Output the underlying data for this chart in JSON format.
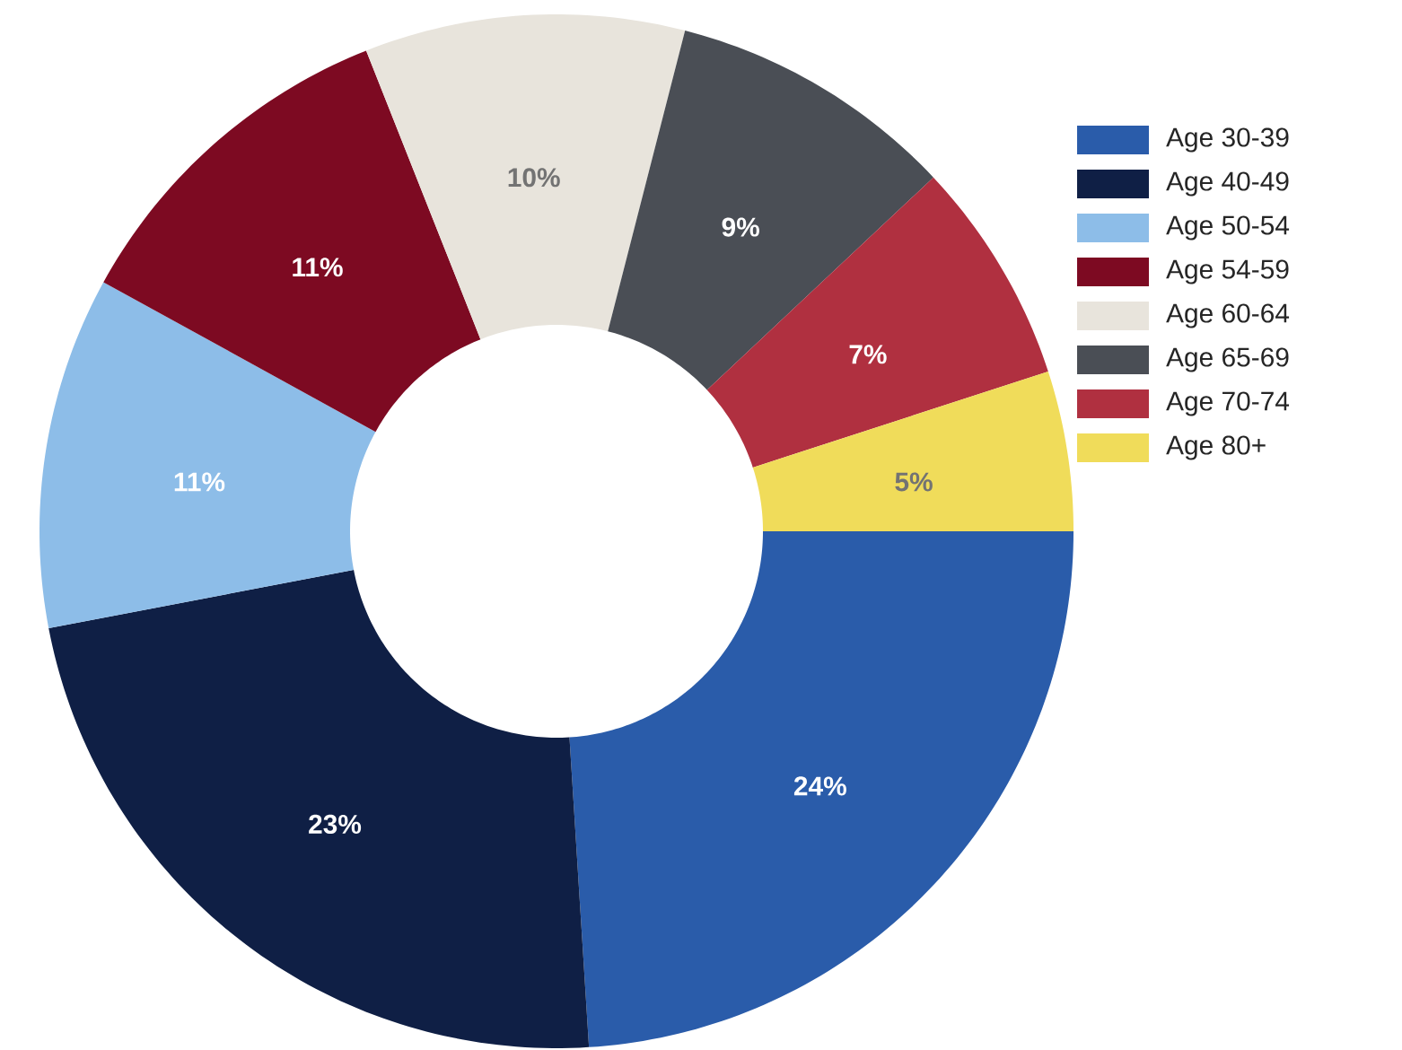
{
  "chart_data": {
    "type": "donut",
    "categories": [
      "Age 30-39",
      "Age 40-49",
      "Age 50-54",
      "Age 54-59",
      "Age 60-64",
      "Age 65-69",
      "Age 70-74",
      "Age 80+"
    ],
    "values": [
      24,
      23,
      11,
      11,
      10,
      9,
      7,
      5
    ],
    "colors": [
      "#2a5caa",
      "#0f1f45",
      "#8dbde8",
      "#7d0a22",
      "#e8e4dc",
      "#4a4e55",
      "#b03040",
      "#f0dc5a"
    ],
    "value_labels": [
      "24%",
      "23%",
      "11%",
      "11%",
      "10%",
      "9%",
      "7%",
      "5%"
    ],
    "legend": "right"
  }
}
